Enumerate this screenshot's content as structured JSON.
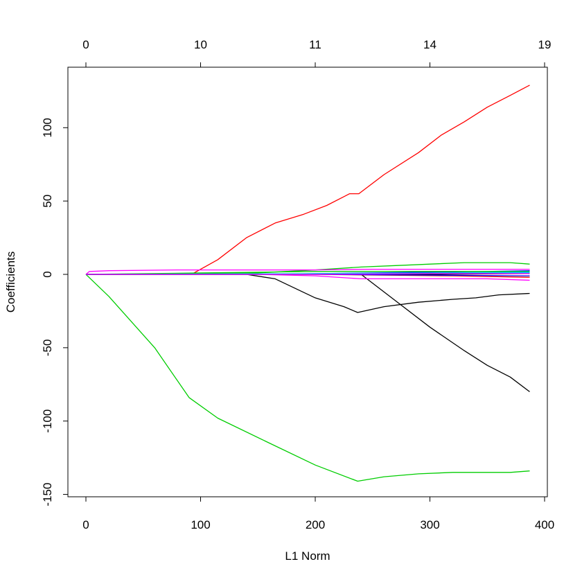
{
  "chart_data": {
    "type": "line",
    "title": "",
    "xlabel": "L1 Norm",
    "ylabel": "Coefficients",
    "xlim": [
      0,
      400
    ],
    "ylim": [
      -150,
      125
    ],
    "x_ticks": [
      0,
      100,
      200,
      300,
      400
    ],
    "y_ticks": [
      -150,
      -100,
      -50,
      0,
      50,
      100
    ],
    "top_axis": {
      "ticks": [
        {
          "x": 0,
          "label": "0"
        },
        {
          "x": 100,
          "label": "10"
        },
        {
          "x": 200,
          "label": "11"
        },
        {
          "x": 300,
          "label": "14"
        },
        {
          "x": 400,
          "label": "19"
        }
      ]
    },
    "grid": false,
    "series": [
      {
        "color": "#ff0000",
        "points": [
          [
            0,
            0
          ],
          [
            92,
            0
          ],
          [
            115,
            10
          ],
          [
            140,
            25
          ],
          [
            165,
            35
          ],
          [
            190,
            41
          ],
          [
            210,
            47
          ],
          [
            225,
            53
          ],
          [
            230,
            55
          ],
          [
            238,
            55
          ],
          [
            260,
            68
          ],
          [
            290,
            83
          ],
          [
            310,
            95
          ],
          [
            330,
            104
          ],
          [
            350,
            114
          ],
          [
            370,
            122
          ],
          [
            387,
            129
          ]
        ]
      },
      {
        "color": "#00cd00",
        "points": [
          [
            0,
            0
          ],
          [
            20,
            -15
          ],
          [
            60,
            -50
          ],
          [
            90,
            -84
          ],
          [
            115,
            -98
          ],
          [
            160,
            -115
          ],
          [
            200,
            -130
          ],
          [
            237,
            -141
          ],
          [
            260,
            -138
          ],
          [
            290,
            -136
          ],
          [
            320,
            -135
          ],
          [
            350,
            -135
          ],
          [
            370,
            -135
          ],
          [
            387,
            -134
          ]
        ]
      },
      {
        "color": "#00cd00",
        "points": [
          [
            0,
            0
          ],
          [
            150,
            1
          ],
          [
            200,
            3
          ],
          [
            240,
            5
          ],
          [
            270,
            6
          ],
          [
            300,
            7
          ],
          [
            330,
            8
          ],
          [
            350,
            8
          ],
          [
            370,
            8
          ],
          [
            387,
            7
          ]
        ]
      },
      {
        "color": "#000000",
        "points": [
          [
            0,
            0
          ],
          [
            140,
            0
          ],
          [
            165,
            -3
          ],
          [
            200,
            -16
          ],
          [
            225,
            -22
          ],
          [
            237,
            -26
          ],
          [
            260,
            -22
          ],
          [
            290,
            -19
          ],
          [
            320,
            -17
          ],
          [
            340,
            -16
          ],
          [
            360,
            -14
          ],
          [
            387,
            -13
          ]
        ]
      },
      {
        "color": "#000000",
        "points": [
          [
            0,
            0
          ],
          [
            240,
            0
          ],
          [
            270,
            -18
          ],
          [
            300,
            -36
          ],
          [
            330,
            -52
          ],
          [
            350,
            -62
          ],
          [
            370,
            -70
          ],
          [
            387,
            -80
          ]
        ]
      },
      {
        "color": "#ff00ff",
        "points": [
          [
            0,
            0
          ],
          [
            3,
            2
          ],
          [
            20,
            2.5
          ],
          [
            80,
            3
          ],
          [
            150,
            3
          ],
          [
            200,
            3
          ],
          [
            250,
            3.5
          ],
          [
            300,
            3.5
          ],
          [
            387,
            3.5
          ]
        ]
      },
      {
        "color": "#ff00ff",
        "points": [
          [
            0,
            0
          ],
          [
            150,
            0
          ],
          [
            200,
            -1
          ],
          [
            240,
            -3
          ],
          [
            300,
            -3
          ],
          [
            350,
            -3
          ],
          [
            387,
            -4
          ]
        ]
      },
      {
        "color": "#0000ff",
        "points": [
          [
            0,
            0
          ],
          [
            150,
            0
          ],
          [
            200,
            0.5
          ],
          [
            250,
            1
          ],
          [
            300,
            1.5
          ],
          [
            350,
            2
          ],
          [
            387,
            2.5
          ]
        ]
      },
      {
        "color": "#00bfff",
        "points": [
          [
            0,
            0
          ],
          [
            200,
            0
          ],
          [
            250,
            0.5
          ],
          [
            300,
            0.5
          ],
          [
            387,
            1
          ]
        ]
      },
      {
        "color": "#ff0000",
        "points": [
          [
            0,
            0
          ],
          [
            200,
            0
          ],
          [
            260,
            -0.5
          ],
          [
            320,
            -1
          ],
          [
            387,
            -2
          ]
        ]
      },
      {
        "color": "#00cd00",
        "points": [
          [
            0,
            0
          ],
          [
            100,
            1
          ],
          [
            200,
            2
          ],
          [
            250,
            2
          ],
          [
            300,
            2
          ],
          [
            387,
            2
          ]
        ]
      },
      {
        "color": "#000000",
        "points": [
          [
            0,
            0
          ],
          [
            200,
            0
          ],
          [
            300,
            0
          ],
          [
            387,
            0.5
          ]
        ]
      },
      {
        "color": "#0000ff",
        "points": [
          [
            0,
            0
          ],
          [
            200,
            0
          ],
          [
            300,
            -0.5
          ],
          [
            387,
            -1
          ]
        ]
      },
      {
        "color": "#00bfff",
        "points": [
          [
            0,
            0
          ],
          [
            200,
            0.5
          ],
          [
            300,
            1
          ],
          [
            387,
            1.5
          ]
        ]
      },
      {
        "color": "#ff00ff",
        "points": [
          [
            0,
            0
          ],
          [
            200,
            0
          ],
          [
            300,
            0.5
          ],
          [
            387,
            0.5
          ]
        ]
      }
    ]
  }
}
